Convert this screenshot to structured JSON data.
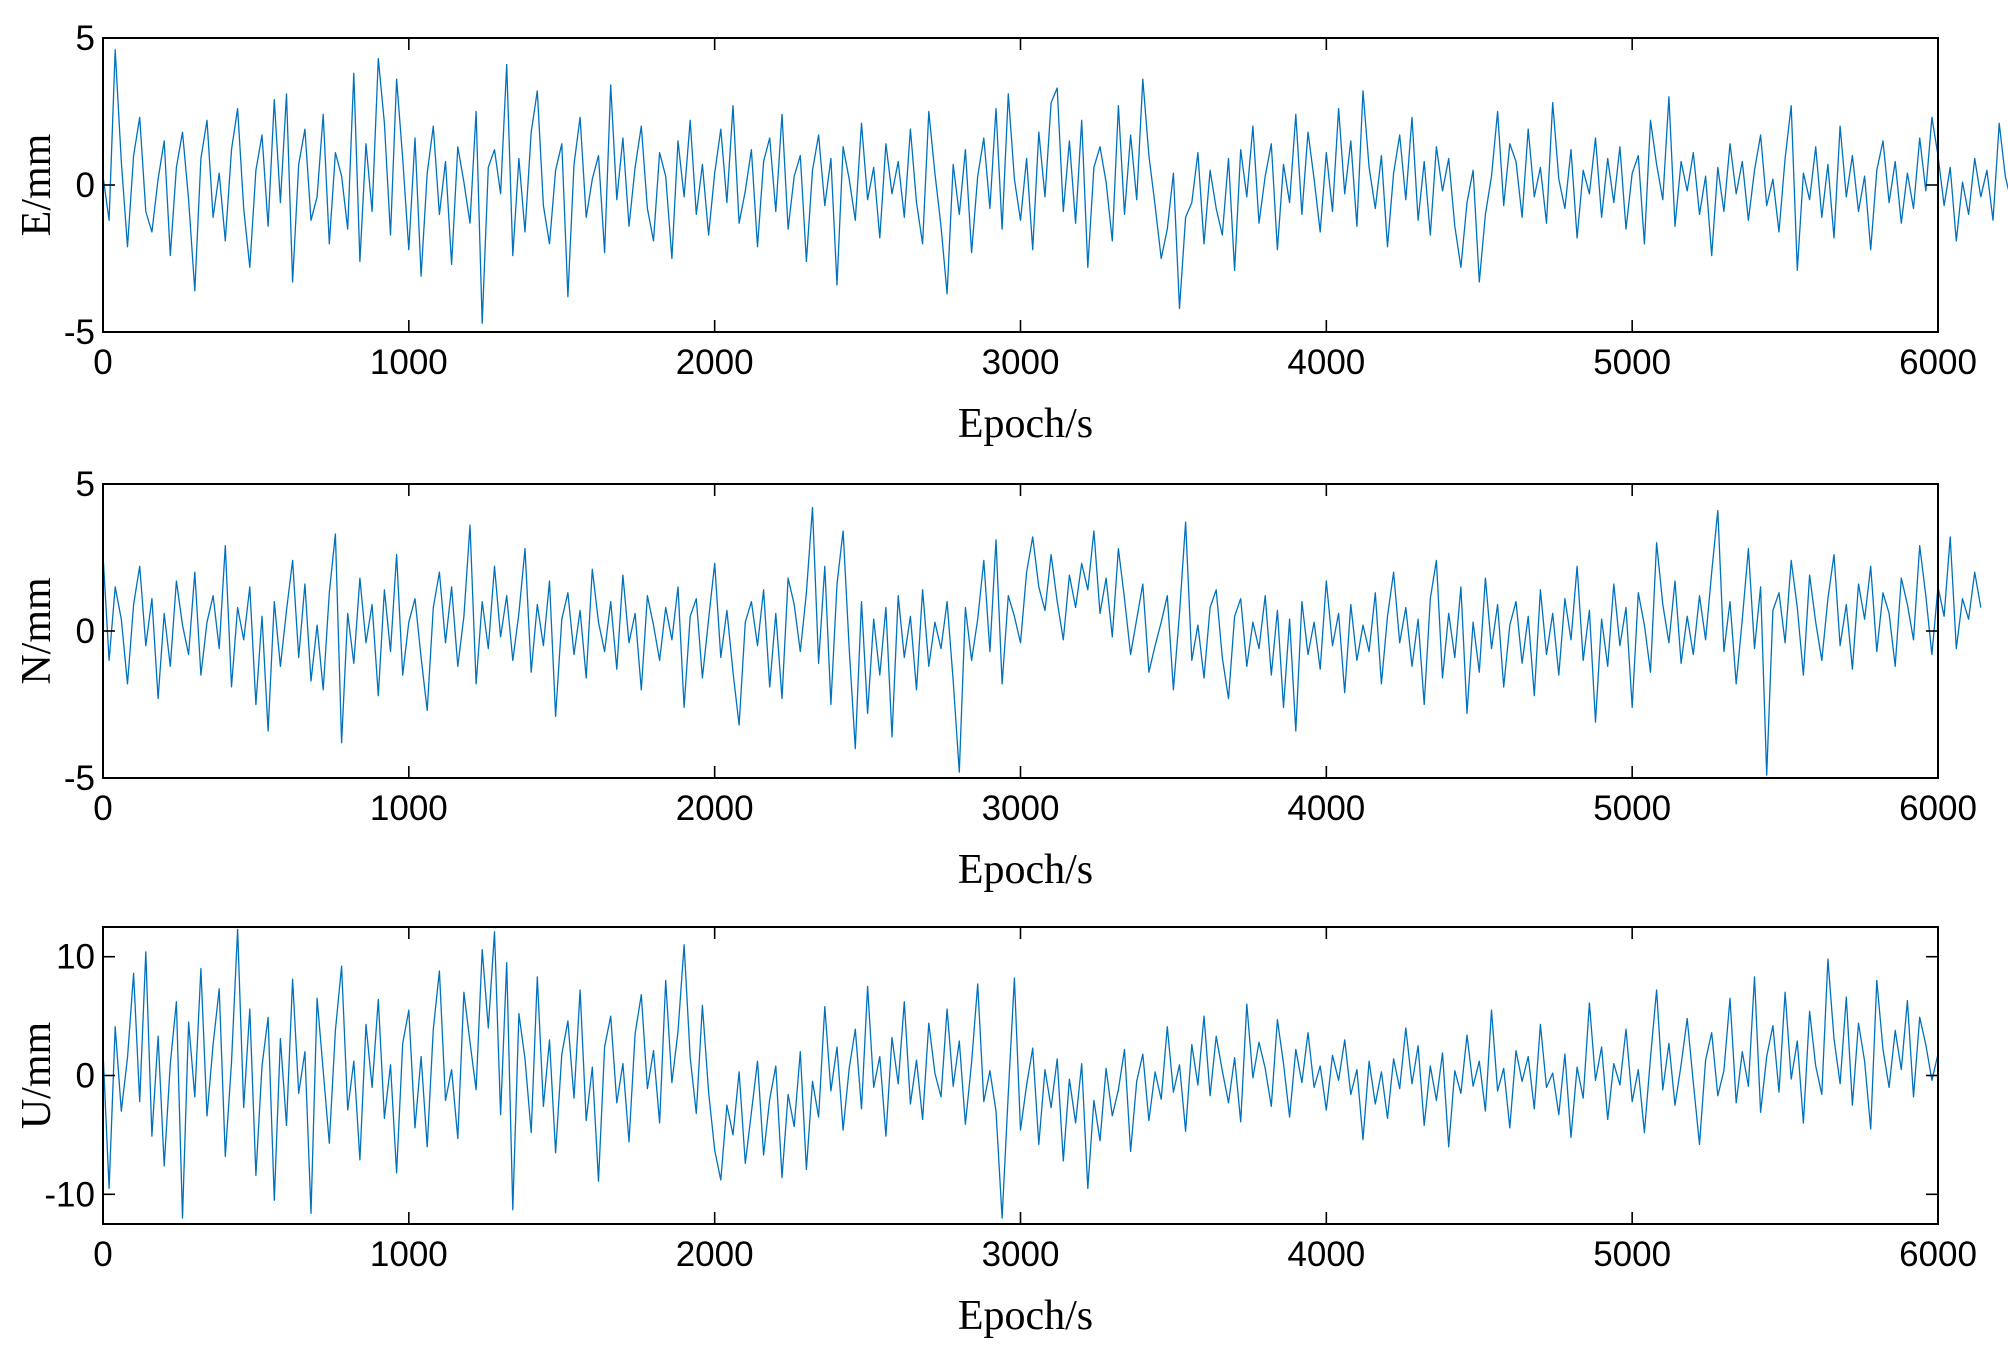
{
  "chart_data": [
    {
      "type": "line",
      "xlabel": "Epoch/s",
      "ylabel": "E/mm",
      "xlim": [
        0,
        6000
      ],
      "ylim": [
        -5,
        5
      ],
      "xticks": [
        0,
        1000,
        2000,
        3000,
        4000,
        5000,
        6000
      ],
      "yticks": [
        -5,
        0,
        5
      ],
      "xtick_labels": [
        "0",
        "1000",
        "2000",
        "3000",
        "4000",
        "5000",
        "6000"
      ],
      "ytick_labels": [
        "-5",
        "0",
        "5"
      ],
      "grid": false,
      "legend": "none",
      "color": "#0072BD",
      "series": [
        {
          "x_start": 0,
          "x_step": 20,
          "values": [
            0.3,
            -1.2,
            4.6,
            0.8,
            -2.1,
            1.0,
            2.3,
            -0.9,
            -1.6,
            0.2,
            1.5,
            -2.4,
            0.6,
            1.8,
            -0.5,
            -3.6,
            0.9,
            2.2,
            -1.1,
            0.4,
            -1.9,
            1.2,
            2.6,
            -0.8,
            -2.8,
            0.5,
            1.7,
            -1.4,
            2.9,
            -0.6,
            3.1,
            -3.3,
            0.7,
            1.9,
            -1.2,
            -0.4,
            2.4,
            -2.0,
            1.1,
            0.3,
            -1.5,
            3.8,
            -2.6,
            1.4,
            -0.9,
            4.3,
            2.1,
            -1.7,
            3.6,
            0.9,
            -2.2,
            1.6,
            -3.1,
            0.4,
            2.0,
            -1.0,
            0.8,
            -2.7,
            1.3,
            0.1,
            -1.3,
            2.5,
            -4.7,
            0.6,
            1.2,
            -0.3,
            4.1,
            -2.4,
            0.9,
            -1.6,
            1.8,
            3.2,
            -0.7,
            -2.0,
            0.5,
            1.4,
            -3.8,
            0.7,
            2.3,
            -1.1,
            0.2,
            1.0,
            -2.3,
            3.4,
            -0.5,
            1.6,
            -1.4,
            0.6,
            2.0,
            -0.8,
            -1.9,
            1.1,
            0.3,
            -2.5,
            1.5,
            -0.4,
            2.2,
            -1.0,
            0.7,
            -1.7,
            0.4,
            1.9,
            -0.6,
            2.7,
            -1.3,
            -0.2,
            1.2,
            -2.1,
            0.8,
            1.6,
            -0.9,
            2.4,
            -1.5,
            0.3,
            1.0,
            -2.6,
            0.5,
            1.7,
            -0.7,
            0.9,
            -3.4,
            1.3,
            0.2,
            -1.2,
            2.1,
            -0.5,
            0.6,
            -1.8,
            1.4,
            -0.3,
            0.8,
            -1.1,
            1.9,
            -0.6,
            -2.0,
            2.5,
            0.4,
            -1.4,
            -3.7,
            0.7,
            -1.0,
            1.2,
            -2.3,
            0.3,
            1.6,
            -0.8,
            2.6,
            -1.5,
            3.1,
            0.2,
            -1.2,
            0.9,
            -2.2,
            1.8,
            -0.4,
            2.8,
            3.3,
            -0.9,
            1.5,
            -1.3,
            2.2,
            -2.8,
            0.6,
            1.3,
            0.1,
            -1.9,
            2.7,
            -1.0,
            1.7,
            -0.5,
            3.6,
            1.0,
            -0.7,
            -2.5,
            -1.5,
            0.4,
            -4.2,
            -1.1,
            -0.6,
            1.1,
            -2.0,
            0.5,
            -0.8,
            -1.7,
            0.9,
            -2.9,
            1.2,
            -0.4,
            2.0,
            -1.3,
            0.3,
            1.4,
            -2.2,
            0.7,
            -0.6,
            2.4,
            -1.0,
            1.8,
            0.2,
            -1.6,
            1.1,
            -0.9,
            2.6,
            -0.3,
            1.5,
            -1.4,
            3.2,
            0.6,
            -0.8,
            1.0,
            -2.1,
            0.4,
            1.7,
            -0.5,
            2.3,
            -1.2,
            0.8,
            -1.7,
            1.3,
            -0.2,
            0.9,
            -1.4,
            -2.8,
            -0.6,
            0.5,
            -3.3,
            -1.0,
            0.3,
            2.5,
            -0.7,
            1.4,
            0.8,
            -1.1,
            1.9,
            -0.4,
            0.6,
            -1.3,
            2.8,
            0.2,
            -0.8,
            1.2,
            -1.8,
            0.5,
            -0.3,
            1.6,
            -1.1,
            0.9,
            -0.6,
            1.3,
            -1.5,
            0.4,
            1.0,
            -2.0,
            2.2,
            0.7,
            -0.5,
            3.0,
            -1.4,
            0.8,
            -0.2,
            1.1,
            -1.0,
            0.3,
            -2.4,
            0.6,
            -0.9,
            1.4,
            -0.3,
            0.8,
            -1.2,
            0.5,
            1.7,
            -0.7,
            0.2,
            -1.6,
            0.9,
            2.7,
            -2.9,
            0.4,
            -0.5,
            1.3,
            -1.1,
            0.7,
            -1.8,
            2.0,
            -0.4,
            1.0,
            -0.9,
            0.3,
            -2.2,
            0.5,
            1.5,
            -0.6,
            0.8,
            -1.3,
            0.4,
            -0.8,
            1.6,
            -0.2,
            2.3,
            1.0,
            -0.7,
            0.6,
            -1.9,
            0.1,
            -1.0,
            0.9,
            -0.4,
            0.5,
            -1.2,
            2.1,
            0.3,
            -0.6
          ]
        }
      ]
    },
    {
      "type": "line",
      "xlabel": "Epoch/s",
      "ylabel": "N/mm",
      "xlim": [
        0,
        6000
      ],
      "ylim": [
        -5,
        5
      ],
      "xticks": [
        0,
        1000,
        2000,
        3000,
        4000,
        5000,
        6000
      ],
      "yticks": [
        -5,
        0,
        5
      ],
      "xtick_labels": [
        "0",
        "1000",
        "2000",
        "3000",
        "4000",
        "5000",
        "6000"
      ],
      "ytick_labels": [
        "-5",
        "0",
        "5"
      ],
      "grid": false,
      "legend": "none",
      "color": "#0072BD",
      "series": [
        {
          "x_start": 0,
          "x_step": 20,
          "values": [
            2.6,
            -1.0,
            1.5,
            0.4,
            -1.8,
            0.9,
            2.2,
            -0.5,
            1.1,
            -2.3,
            0.6,
            -1.2,
            1.7,
            0.2,
            -0.8,
            2.0,
            -1.5,
            0.3,
            1.2,
            -0.6,
            2.9,
            -1.9,
            0.8,
            -0.3,
            1.5,
            -2.5,
            0.5,
            -3.4,
            1.0,
            -1.2,
            0.7,
            2.4,
            -0.9,
            1.6,
            -1.7,
            0.2,
            -2.0,
            1.3,
            3.3,
            -3.8,
            0.6,
            -1.1,
            1.8,
            -0.4,
            0.9,
            -2.2,
            1.4,
            -0.7,
            2.6,
            -1.5,
            0.3,
            1.1,
            -0.9,
            -2.7,
            0.8,
            2.0,
            -0.4,
            1.5,
            -1.2,
            0.5,
            3.6,
            -1.8,
            1.0,
            -0.6,
            2.2,
            -0.2,
            1.2,
            -1.0,
            0.6,
            2.8,
            -1.4,
            0.9,
            -0.5,
            1.7,
            -2.9,
            0.4,
            1.3,
            -0.8,
            0.7,
            -1.6,
            2.1,
            0.3,
            -0.7,
            1.0,
            -1.3,
            1.9,
            -0.4,
            0.6,
            -2.0,
            1.2,
            0.2,
            -1.0,
            0.8,
            -0.3,
            1.5,
            -2.6,
            0.5,
            1.1,
            -1.6,
            0.4,
            2.3,
            -0.9,
            0.7,
            -1.4,
            -3.2,
            0.3,
            1.0,
            -0.5,
            1.4,
            -1.9,
            0.6,
            -2.3,
            1.8,
            0.9,
            -0.7,
            1.3,
            4.2,
            -1.1,
            2.2,
            -2.5,
            1.6,
            3.4,
            -0.6,
            -4.0,
            1.0,
            -2.8,
            0.4,
            -1.5,
            0.8,
            -3.6,
            1.2,
            -0.9,
            0.5,
            -2.0,
            1.4,
            -1.2,
            0.3,
            -0.6,
            1.0,
            -1.7,
            -4.8,
            0.8,
            -1.0,
            0.4,
            2.4,
            -0.7,
            3.1,
            -1.8,
            1.2,
            0.5,
            -0.4,
            2.0,
            3.2,
            1.5,
            0.7,
            2.6,
            1.0,
            -0.3,
            1.9,
            0.8,
            2.3,
            1.4,
            3.4,
            0.6,
            1.8,
            -0.2,
            2.8,
            1.1,
            -0.8,
            0.4,
            1.6,
            -1.4,
            -0.5,
            0.3,
            1.2,
            -2.0,
            0.6,
            3.7,
            -1.0,
            0.2,
            -1.6,
            0.8,
            1.4,
            -0.9,
            -2.3,
            0.5,
            1.1,
            -1.2,
            0.3,
            -0.6,
            1.2,
            -1.5,
            0.7,
            -2.6,
            0.4,
            -3.4,
            1.0,
            -0.8,
            0.3,
            -1.3,
            1.7,
            -0.5,
            0.6,
            -2.1,
            0.9,
            -1.0,
            0.2,
            -0.7,
            1.3,
            -1.8,
            0.5,
            2.0,
            -0.4,
            0.8,
            -1.2,
            0.4,
            -2.5,
            1.1,
            2.4,
            -1.6,
            0.6,
            -0.9,
            1.5,
            -2.8,
            0.3,
            -1.4,
            1.8,
            -0.6,
            0.9,
            -1.9,
            0.2,
            1.0,
            -1.1,
            0.5,
            -2.2,
            1.4,
            -0.8,
            0.6,
            -1.5,
            1.1,
            -0.3,
            2.2,
            -1.0,
            0.7,
            -3.1,
            0.4,
            -1.2,
            1.6,
            -0.5,
            0.8,
            -2.6,
            1.3,
            0.2,
            -1.4,
            3.0,
            0.9,
            -0.4,
            1.7,
            -1.1,
            0.5,
            -0.8,
            1.2,
            -0.3,
            2.0,
            4.1,
            -0.7,
            1.0,
            -1.8,
            0.4,
            2.8,
            -0.6,
            1.5,
            -4.9,
            0.7,
            1.3,
            -0.4,
            2.4,
            0.8,
            -1.5,
            1.9,
            0.3,
            -1.0,
            1.1,
            2.6,
            -0.5,
            0.9,
            -1.3,
            1.6,
            0.4,
            2.2,
            -0.7,
            1.3,
            0.6,
            -1.2,
            1.8,
            0.9,
            -0.3,
            2.9,
            1.2,
            -0.8,
            1.5,
            0.5,
            3.2,
            -0.6,
            1.1,
            0.4,
            2.0,
            0.8
          ]
        }
      ]
    },
    {
      "type": "line",
      "xlabel": "Epoch/s",
      "ylabel": "U/mm",
      "xlim": [
        0,
        6000
      ],
      "ylim": [
        -12.5,
        12.5
      ],
      "xticks": [
        0,
        1000,
        2000,
        3000,
        4000,
        5000,
        6000
      ],
      "yticks": [
        -10,
        0,
        10
      ],
      "xtick_labels": [
        "0",
        "1000",
        "2000",
        "3000",
        "4000",
        "5000",
        "6000"
      ],
      "ytick_labels": [
        "-10",
        "0",
        "10"
      ],
      "grid": false,
      "legend": "none",
      "color": "#0072BD",
      "series": [
        {
          "x_start": 0,
          "x_step": 20,
          "values": [
            2.0,
            -9.5,
            4.1,
            -3.0,
            1.5,
            8.6,
            -2.2,
            10.4,
            -5.1,
            3.3,
            -7.6,
            1.0,
            6.2,
            -12.0,
            4.5,
            -1.8,
            9.0,
            -3.4,
            2.6,
            7.3,
            -6.8,
            1.1,
            12.3,
            -2.7,
            5.6,
            -8.4,
            0.8,
            4.9,
            -10.5,
            3.1,
            -4.2,
            8.1,
            -1.5,
            2.0,
            -11.6,
            6.5,
            0.4,
            -5.7,
            3.8,
            9.2,
            -2.9,
            1.2,
            -7.1,
            4.3,
            -1.0,
            6.4,
            -3.6,
            0.9,
            -8.2,
            2.7,
            5.5,
            -4.4,
            1.6,
            -6.0,
            3.9,
            8.8,
            -2.1,
            0.5,
            -5.3,
            7.0,
            2.8,
            -1.2,
            10.6,
            4.0,
            12.1,
            -3.3,
            9.5,
            -11.3,
            5.2,
            1.4,
            -4.8,
            8.3,
            -2.6,
            3.0,
            -6.5,
            1.8,
            4.6,
            -1.9,
            7.2,
            -3.8,
            0.7,
            -8.9,
            2.4,
            5.0,
            -2.3,
            1.0,
            -5.6,
            3.5,
            6.8,
            -1.1,
            2.1,
            -4.0,
            8.0,
            -0.6,
            3.7,
            11.0,
            1.5,
            -3.2,
            5.9,
            -1.4,
            -6.3,
            -8.8,
            -2.5,
            -5.0,
            0.3,
            -7.4,
            -3.1,
            1.2,
            -6.7,
            -2.0,
            0.8,
            -8.6,
            -1.6,
            -4.3,
            2.0,
            -7.9,
            -0.5,
            -3.5,
            5.8,
            -1.3,
            2.4,
            -4.6,
            0.6,
            3.9,
            -2.8,
            7.5,
            -1.0,
            1.6,
            -5.1,
            3.2,
            -0.7,
            6.2,
            -2.4,
            1.3,
            -3.7,
            4.4,
            0.2,
            -1.8,
            5.6,
            -0.9,
            2.9,
            -4.1,
            1.1,
            7.7,
            -2.2,
            0.4,
            -3.0,
            -12.0,
            -1.5,
            8.2,
            -4.6,
            -0.8,
            2.3,
            -5.8,
            0.5,
            -2.7,
            1.4,
            -7.2,
            -0.3,
            -4.0,
            1.0,
            -9.5,
            -2.1,
            -5.5,
            0.6,
            -3.4,
            -1.2,
            2.2,
            -6.4,
            -0.5,
            1.8,
            -3.8,
            0.3,
            -2.0,
            4.1,
            -1.4,
            0.9,
            -4.7,
            2.6,
            -0.8,
            5.0,
            -1.7,
            3.3,
            0.4,
            -2.3,
            1.5,
            -3.9,
            6.0,
            -0.2,
            2.8,
            0.6,
            -2.6,
            4.7,
            1.0,
            -3.5,
            2.2,
            -0.6,
            3.6,
            -1.0,
            0.8,
            -2.9,
            1.7,
            -0.4,
            3.0,
            -1.6,
            0.5,
            -5.4,
            1.2,
            -2.4,
            0.3,
            -3.6,
            1.4,
            -1.1,
            4.0,
            -0.7,
            2.5,
            -4.2,
            0.8,
            -2.1,
            1.9,
            -6.0,
            0.4,
            -1.5,
            3.4,
            -0.9,
            1.2,
            -3.0,
            5.5,
            -1.3,
            0.6,
            -4.4,
            2.1,
            -0.5,
            1.6,
            -2.8,
            4.3,
            -1.0,
            0.2,
            -3.3,
            1.8,
            -5.2,
            0.7,
            -1.9,
            6.1,
            -0.4,
            2.4,
            -3.7,
            1.0,
            -0.8,
            3.9,
            -2.2,
            0.5,
            -4.8,
            1.5,
            7.2,
            -1.2,
            2.7,
            -2.5,
            0.9,
            4.8,
            -0.6,
            -5.8,
            1.3,
            3.6,
            -1.7,
            0.4,
            6.5,
            -2.3,
            2.0,
            -0.9,
            8.3,
            -3.1,
            1.6,
            4.2,
            -1.4,
            7.0,
            -0.3,
            2.9,
            -4.0,
            5.4,
            0.8,
            -1.6,
            9.8,
            3.1,
            -0.7,
            6.6,
            -2.5,
            4.4,
            1.2,
            -4.5,
            8.0,
            2.2,
            -1.0,
            3.8,
            0.5,
            6.3,
            -1.8,
            4.9,
            2.6,
            -0.4,
            1.8
          ]
        }
      ]
    }
  ]
}
